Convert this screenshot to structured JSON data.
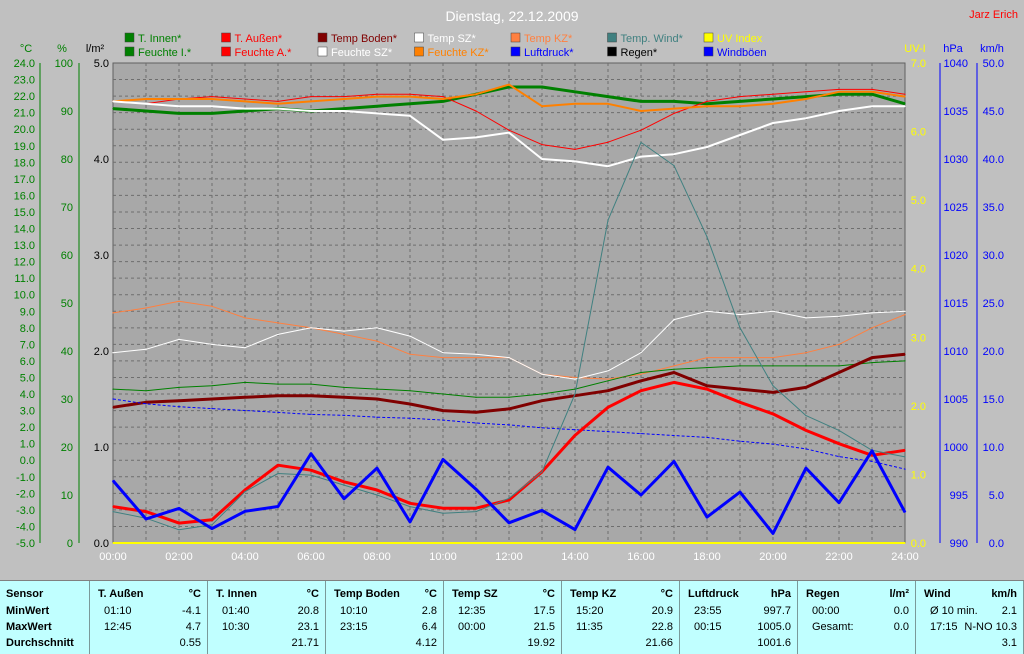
{
  "title": "Dienstag, 22.12.2009",
  "author": "Jarz Erich",
  "colors": {
    "background": "#c0c0c0",
    "plot_background": "#a8a8a8",
    "stats_background": "#c0ffff",
    "title": "#ffffff",
    "author": "#ff0000"
  },
  "legend": [
    {
      "label": "T. Innen*",
      "color": "#008000"
    },
    {
      "label": "T. Außen*",
      "color": "#ff0000"
    },
    {
      "label": "Temp Boden*",
      "color": "#800000"
    },
    {
      "label": "Temp SZ*",
      "color": "#ffffff"
    },
    {
      "label": "Temp KZ*",
      "color": "#ff8040"
    },
    {
      "label": "Temp. Wind*",
      "color": "#408080"
    },
    {
      "label": "UV Index",
      "color": "#ffff00"
    },
    {
      "label": "Feuchte I.*",
      "color": "#008000"
    },
    {
      "label": "Feuchte A.*",
      "color": "#ff0000"
    },
    {
      "label": "Feuchte SZ*",
      "color": "#ffffff"
    },
    {
      "label": "Feuchte KZ*",
      "color": "#ff8000"
    },
    {
      "label": "Luftdruck*",
      "color": "#0000ff"
    },
    {
      "label": "Regen*",
      "color": "#000000"
    },
    {
      "label": "Windböen",
      "color": "#0000ff"
    }
  ],
  "axes_units": {
    "temp": "°C",
    "humidity": "%",
    "rain": "l/m²",
    "uv": "UV-I",
    "pressure": "hPa",
    "wind": "km/h"
  },
  "chart_data": {
    "type": "line",
    "x_ticks": [
      "00:00",
      "02:00",
      "04:00",
      "06:00",
      "08:00",
      "10:00",
      "12:00",
      "14:00",
      "16:00",
      "18:00",
      "20:00",
      "22:00",
      "24:00"
    ],
    "x": [
      0,
      1,
      2,
      3,
      4,
      5,
      6,
      7,
      8,
      9,
      10,
      11,
      12,
      13,
      14,
      15,
      16,
      17,
      18,
      19,
      20,
      21,
      22,
      23,
      24
    ],
    "axes": {
      "temp": {
        "label": "°C",
        "color": "#008000",
        "range": [
          -5,
          24
        ],
        "ticks": [
          "24.0",
          "23.0",
          "22.0",
          "21.0",
          "20.0",
          "19.0",
          "18.0",
          "17.0",
          "16.0",
          "15.0",
          "14.0",
          "13.0",
          "12.0",
          "11.0",
          "10.0",
          "9.0",
          "8.0",
          "7.0",
          "6.0",
          "5.0",
          "4.0",
          "3.0",
          "2.0",
          "1.0",
          "0.0",
          "-1.0",
          "-2.0",
          "-3.0",
          "-4.0",
          "-5.0"
        ]
      },
      "humidity": {
        "label": "%",
        "color": "#008000",
        "range": [
          0,
          100
        ],
        "ticks": [
          "100",
          "90",
          "80",
          "70",
          "60",
          "50",
          "40",
          "30",
          "20",
          "10",
          "0"
        ]
      },
      "rain": {
        "label": "l/m²",
        "color": "#000000",
        "range": [
          0,
          5
        ],
        "ticks": [
          "5.0",
          "4.0",
          "3.0",
          "2.0",
          "1.0",
          "0.0"
        ]
      },
      "uv": {
        "label": "UV-I",
        "color": "#ffff00",
        "range": [
          0,
          7
        ],
        "ticks": [
          "7.0",
          "6.0",
          "5.0",
          "4.0",
          "3.0",
          "2.0",
          "1.0",
          "0.0"
        ]
      },
      "pressure": {
        "label": "hPa",
        "color": "#0000ff",
        "range": [
          990,
          1040
        ],
        "ticks": [
          "1040",
          "1035",
          "1030",
          "1025",
          "1020",
          "1015",
          "1010",
          "1005",
          "1000",
          "995",
          "990"
        ]
      },
      "wind": {
        "label": "km/h",
        "color": "#0000ff",
        "range": [
          0,
          50
        ],
        "ticks": [
          "50.0",
          "45.0",
          "40.0",
          "35.0",
          "30.0",
          "25.0",
          "20.0",
          "15.0",
          "10.0",
          "5.0",
          "0.0"
        ]
      }
    },
    "series": [
      {
        "name": "Feuchte I.*",
        "axis": "humidity",
        "color": "#008000",
        "width": 3,
        "values": [
          90.5,
          90,
          89.5,
          89.5,
          90,
          90.5,
          90,
          90.5,
          91,
          91.5,
          92,
          93.5,
          95,
          95,
          94,
          93,
          92,
          92,
          91.5,
          92,
          92.5,
          93,
          93.5,
          93.5,
          91.5
        ]
      },
      {
        "name": "Feuchte A.*",
        "axis": "humidity",
        "color": "#ff0000",
        "width": 1,
        "values": [
          92,
          91.5,
          92.5,
          93,
          92.5,
          92,
          93,
          93,
          93.5,
          93.5,
          93,
          90,
          86,
          83,
          82,
          83.5,
          86,
          89.5,
          92,
          93,
          93.5,
          94,
          94.5,
          94.5,
          93.5
        ]
      },
      {
        "name": "Feuchte KZ*",
        "axis": "humidity",
        "color": "#ff8000",
        "width": 2,
        "values": [
          92,
          92.5,
          92.5,
          92.5,
          92,
          91.5,
          92,
          92.5,
          93,
          93,
          92.5,
          93.5,
          95.5,
          91,
          91.5,
          91.5,
          90,
          90.5,
          91,
          91,
          91.5,
          92.5,
          94,
          94,
          93
        ]
      },
      {
        "name": "Feuchte SZ*",
        "axis": "humidity",
        "color": "#ffffff",
        "width": 2,
        "values": [
          92,
          91.5,
          91,
          91,
          90.5,
          90.5,
          90,
          90,
          89.5,
          89,
          84,
          84.5,
          85.5,
          80,
          79.5,
          78.5,
          80.5,
          81,
          82.5,
          85,
          87.5,
          88.5,
          90,
          91,
          91
        ]
      },
      {
        "name": "Temp KZ*",
        "axis": "temp",
        "color": "#ff8040",
        "width": 1,
        "values": [
          8.9,
          9.2,
          9.6,
          9.3,
          8.6,
          8.3,
          8.0,
          7.6,
          7.2,
          6.4,
          6.2,
          6.2,
          6.2,
          5.2,
          5.0,
          4.9,
          5.2,
          5.7,
          6.2,
          6.2,
          6.2,
          6.5,
          7.0,
          8.0,
          8.8
        ]
      },
      {
        "name": "Temp SZ*",
        "axis": "temp",
        "color": "#ffffff",
        "width": 1,
        "values": [
          6.5,
          6.7,
          7.3,
          7.0,
          6.8,
          7.6,
          8.0,
          7.8,
          8.0,
          7.5,
          6.5,
          6.4,
          6.2,
          5.2,
          4.9,
          5.4,
          6.5,
          8.5,
          9.0,
          8.8,
          9.0,
          8.6,
          8.7,
          8.9,
          9.0
        ]
      },
      {
        "name": "T. Innen*",
        "axis": "temp",
        "color": "#008000",
        "width": 1,
        "values": [
          4.3,
          4.2,
          4.4,
          4.5,
          4.7,
          4.6,
          4.6,
          4.4,
          4.3,
          4.2,
          4.0,
          3.8,
          3.8,
          4.0,
          4.3,
          4.8,
          5.3,
          5.5,
          5.6,
          5.7,
          5.7,
          5.7,
          5.7,
          5.9,
          6.0
        ]
      },
      {
        "name": "Temp Boden*",
        "axis": "temp",
        "color": "#800000",
        "width": 3,
        "values": [
          3.2,
          3.5,
          3.6,
          3.7,
          3.8,
          3.9,
          3.9,
          3.8,
          3.7,
          3.4,
          3.0,
          2.9,
          3.1,
          3.6,
          3.9,
          4.2,
          4.8,
          5.3,
          4.5,
          4.3,
          4.1,
          4.4,
          5.3,
          6.2,
          6.4
        ]
      },
      {
        "name": "Luftdruck*",
        "axis": "pressure",
        "color": "#0000ff",
        "width": 1,
        "dash": true,
        "values": [
          1005,
          1004.5,
          1004.2,
          1004.0,
          1003.8,
          1003.6,
          1003.4,
          1003.3,
          1003.1,
          1003.0,
          1002.8,
          1002.5,
          1002.3,
          1002.0,
          1001.8,
          1001.6,
          1001.4,
          1001.2,
          1001.0,
          1000.6,
          1000.3,
          999.8,
          999.0,
          998.5,
          997.7
        ]
      },
      {
        "name": "T. Außen*",
        "axis": "temp",
        "color": "#ff0000",
        "width": 3,
        "values": [
          -2.8,
          -3.1,
          -3.8,
          -3.6,
          -1.8,
          -0.3,
          -0.6,
          -1.3,
          -1.8,
          -2.6,
          -2.9,
          -2.9,
          -2.4,
          -0.7,
          1.5,
          3.2,
          4.2,
          4.7,
          4.3,
          3.5,
          2.8,
          1.8,
          1.0,
          0.3,
          0.6
        ]
      },
      {
        "name": "Temp. Wind*",
        "axis": "temp",
        "color": "#408080",
        "width": 1,
        "values": [
          -3.1,
          -3.5,
          -4.2,
          -3.9,
          -1.9,
          -0.8,
          -0.9,
          -1.5,
          -2.1,
          -2.8,
          -3.2,
          -3.1,
          -2.3,
          -0.7,
          4.0,
          14.5,
          19.2,
          17.8,
          13.5,
          8.0,
          4.5,
          2.7,
          1.8,
          0.6,
          0.2
        ]
      },
      {
        "name": "Windböen",
        "axis": "wind",
        "color": "#0000ff",
        "width": 3,
        "values": [
          6.5,
          2.5,
          3.6,
          1.5,
          3.3,
          3.8,
          9.3,
          4.6,
          7.8,
          2.2,
          8.7,
          5.6,
          2.1,
          3.4,
          1.4,
          7.9,
          5.0,
          8.5,
          2.7,
          5.3,
          1.0,
          7.8,
          4.2,
          9.6,
          3.2
        ]
      },
      {
        "name": "Regen*",
        "axis": "rain",
        "color": "#000000",
        "width": 1,
        "values": [
          0,
          0,
          0,
          0,
          0,
          0,
          0,
          0,
          0,
          0,
          0,
          0,
          0,
          0,
          0,
          0,
          0,
          0,
          0,
          0,
          0,
          0,
          0,
          0,
          0
        ]
      },
      {
        "name": "UV Index",
        "axis": "uv",
        "color": "#ffff00",
        "width": 2,
        "values": [
          0,
          0,
          0,
          0,
          0,
          0,
          0,
          0,
          0,
          0,
          0,
          0,
          0,
          0,
          0,
          0,
          0,
          0,
          0,
          0,
          0,
          0,
          0,
          0,
          0
        ]
      }
    ]
  },
  "stats": {
    "row_labels": [
      "Sensor",
      "MinWert",
      "MaxWert",
      "Durchschnitt"
    ],
    "columns": [
      {
        "name": "T. Außen",
        "unit": "°C",
        "min_time": "01:10",
        "min": "-4.1",
        "max_time": "12:45",
        "max": "4.7",
        "avg": "0.55"
      },
      {
        "name": "T. Innen",
        "unit": "°C",
        "min_time": "01:40",
        "min": "20.8",
        "max_time": "10:30",
        "max": "23.1",
        "avg": "21.71"
      },
      {
        "name": "Temp Boden",
        "unit": "°C",
        "min_time": "10:10",
        "min": "2.8",
        "max_time": "23:15",
        "max": "6.4",
        "avg": "4.12"
      },
      {
        "name": "Temp SZ",
        "unit": "°C",
        "min_time": "12:35",
        "min": "17.5",
        "max_time": "00:00",
        "max": "21.5",
        "avg": "19.92"
      },
      {
        "name": "Temp KZ",
        "unit": "°C",
        "min_time": "15:20",
        "min": "20.9",
        "max_time": "11:35",
        "max": "22.8",
        "avg": "21.66"
      },
      {
        "name": "Luftdruck",
        "unit": "hPa",
        "min_time": "23:55",
        "min": "997.7",
        "max_time": "00:15",
        "max": "1005.0",
        "avg": "1001.6"
      },
      {
        "name": "Regen",
        "unit": "l/m²",
        "min_time": "00:00",
        "min": "0.0",
        "max_time": "Gesamt:",
        "max": "0.0",
        "avg": ""
      },
      {
        "name": "Wind",
        "unit": "km/h",
        "min_time": "Ø 10 min.",
        "min": "2.1",
        "max_time": "17:15",
        "max": "N-NO 10.3",
        "avg": "3.1"
      }
    ]
  }
}
